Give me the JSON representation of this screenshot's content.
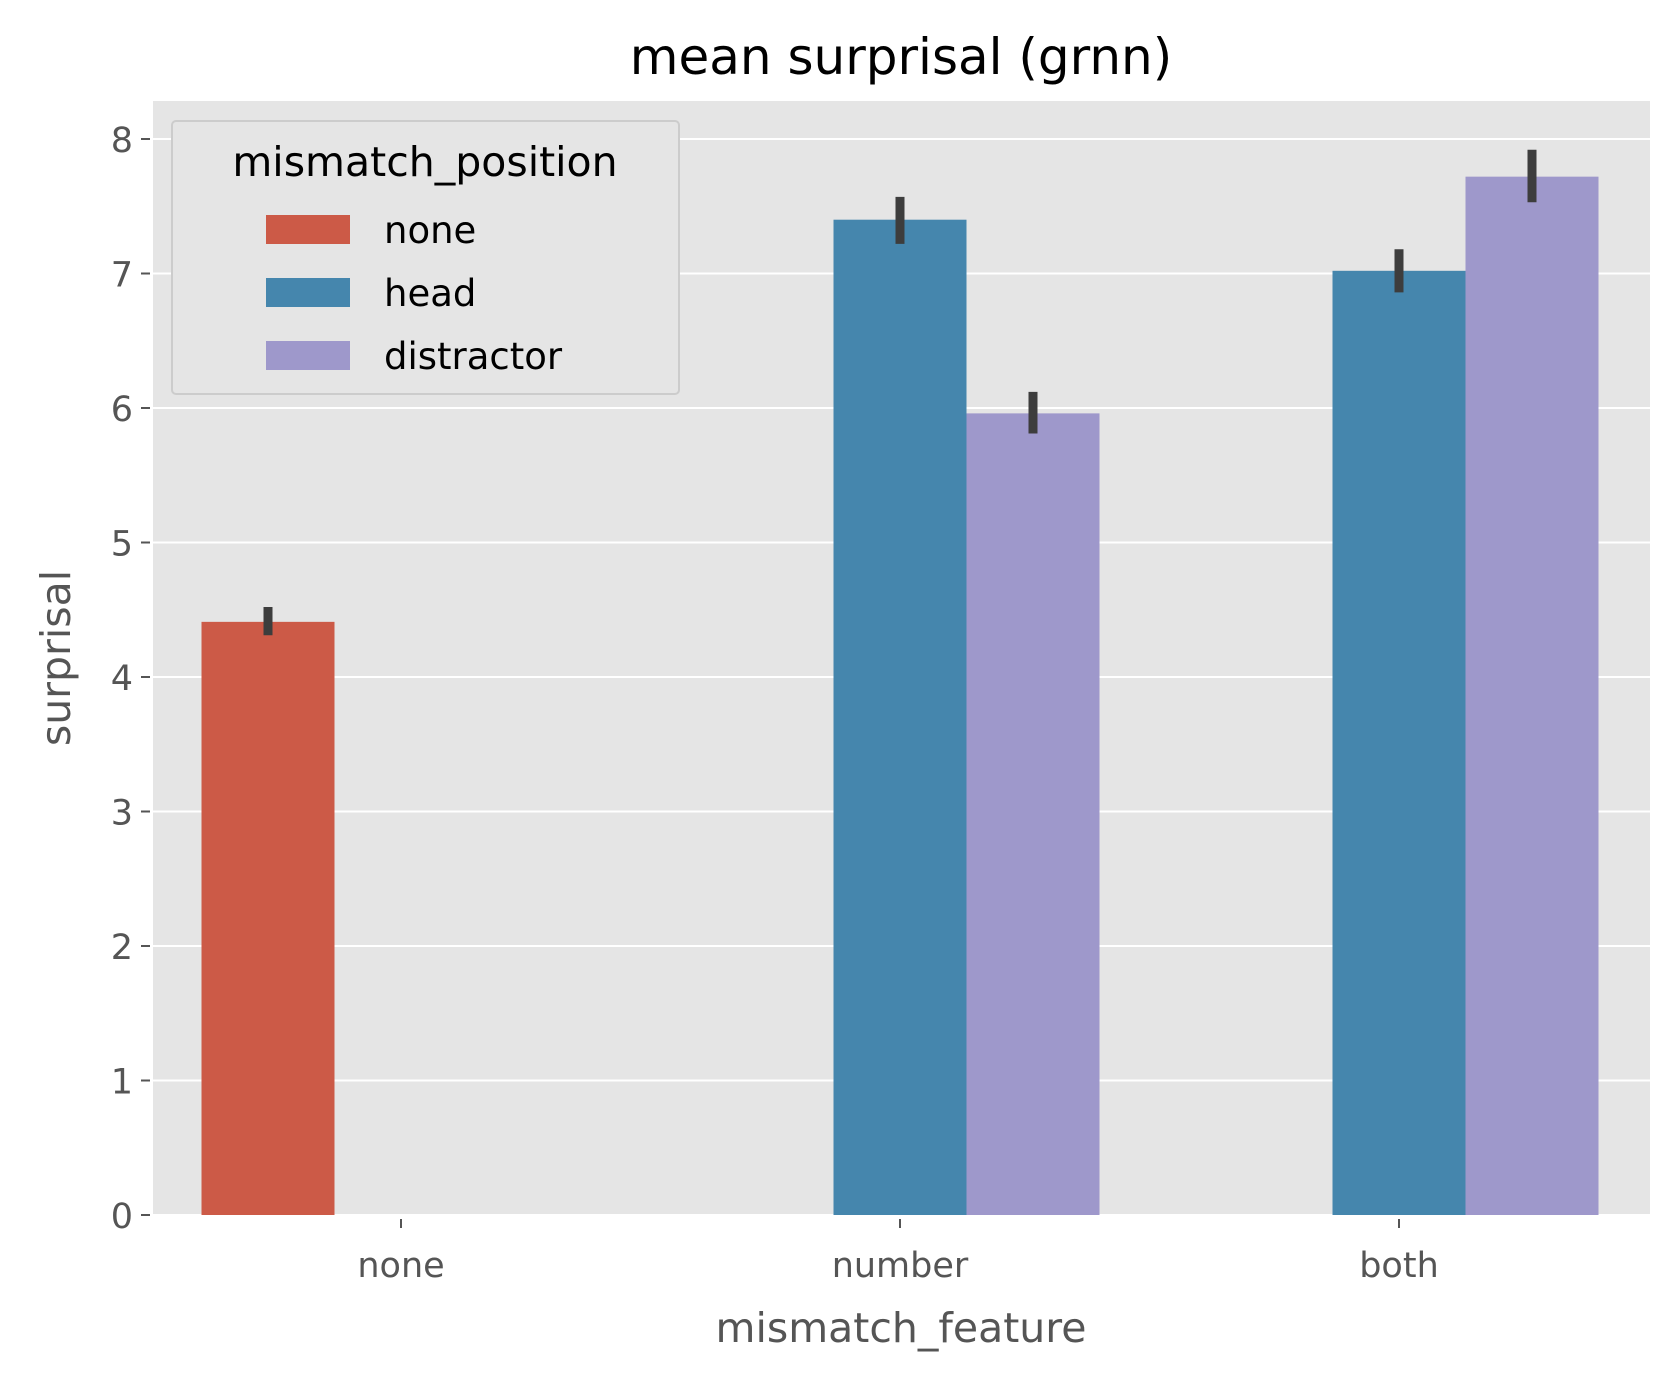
{
  "chart_data": {
    "type": "bar",
    "title": "mean surprisal (grnn)",
    "xlabel": "mismatch_feature",
    "ylabel": "surprisal",
    "categories": [
      "none",
      "number",
      "both"
    ],
    "ylim": [
      0,
      8.3
    ],
    "yticks": [
      0,
      1,
      2,
      3,
      4,
      5,
      6,
      7,
      8
    ],
    "grid": true,
    "legend": {
      "title": "mismatch_position",
      "position": "top-left"
    },
    "series": [
      {
        "name": "none",
        "color": "#cc5a47",
        "values": [
          4.41,
          null,
          null
        ],
        "err_low": [
          4.31,
          null,
          null
        ],
        "err_high": [
          4.52,
          null,
          null
        ]
      },
      {
        "name": "head",
        "color": "#4586ad",
        "values": [
          null,
          7.4,
          7.02
        ],
        "err_low": [
          null,
          7.22,
          6.86
        ],
        "err_high": [
          null,
          7.57,
          7.18
        ]
      },
      {
        "name": "distractor",
        "color": "#9e98cb",
        "values": [
          null,
          5.96,
          7.72
        ],
        "err_low": [
          null,
          5.81,
          7.53
        ],
        "err_high": [
          null,
          6.12,
          7.92
        ]
      }
    ],
    "style": {
      "plot_background": "#e5e5e5",
      "grid_color": "#ffffff",
      "errorbar_color": "#3d3d3d",
      "text_color": "#555555",
      "title_color": "#000000"
    }
  }
}
